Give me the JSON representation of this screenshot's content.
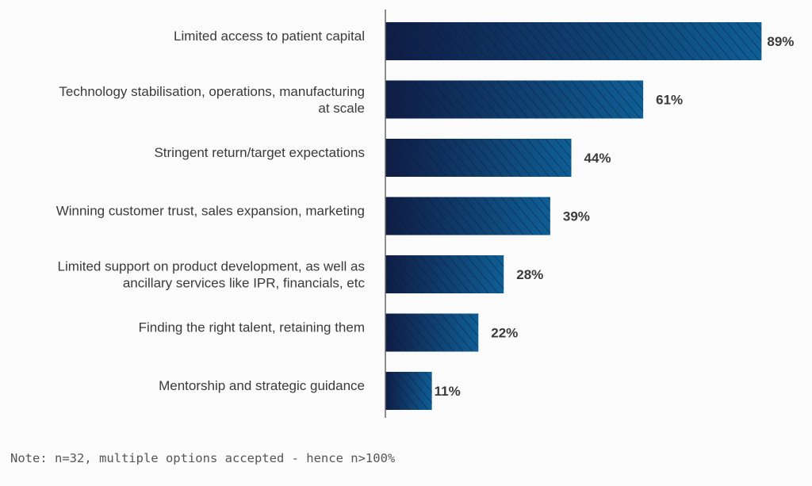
{
  "chart_data": {
    "type": "bar",
    "orientation": "horizontal",
    "categories": [
      [
        "Limited access to patient capital"
      ],
      [
        "Technology stabilisation, operations, manufacturing",
        "at scale"
      ],
      [
        "Stringent return/target expectations"
      ],
      [
        "Winning customer trust, sales expansion, marketing"
      ],
      [
        "Limited support on product development, as well as",
        "ancillary services like IPR, financials, etc"
      ],
      [
        "Finding the right talent, retaining them"
      ],
      [
        "Mentorship and strategic guidance"
      ]
    ],
    "values": [
      89,
      61,
      44,
      39,
      28,
      22,
      11
    ],
    "value_labels": [
      "89%",
      "61%",
      "44%",
      "39%",
      "28%",
      "22%",
      "11%"
    ],
    "xlim": [
      0,
      100
    ],
    "grid": false,
    "legend": "none"
  },
  "note": "Note: n=32, multiple options accepted - hence n>100%",
  "colors": {
    "bar_dark": "#0f1d45",
    "bar_light": "#0f5e95",
    "hatch": "#0a1835",
    "axis": "#6b6b6b",
    "text": "#3a3a3a",
    "background": "#fbfbfb"
  }
}
